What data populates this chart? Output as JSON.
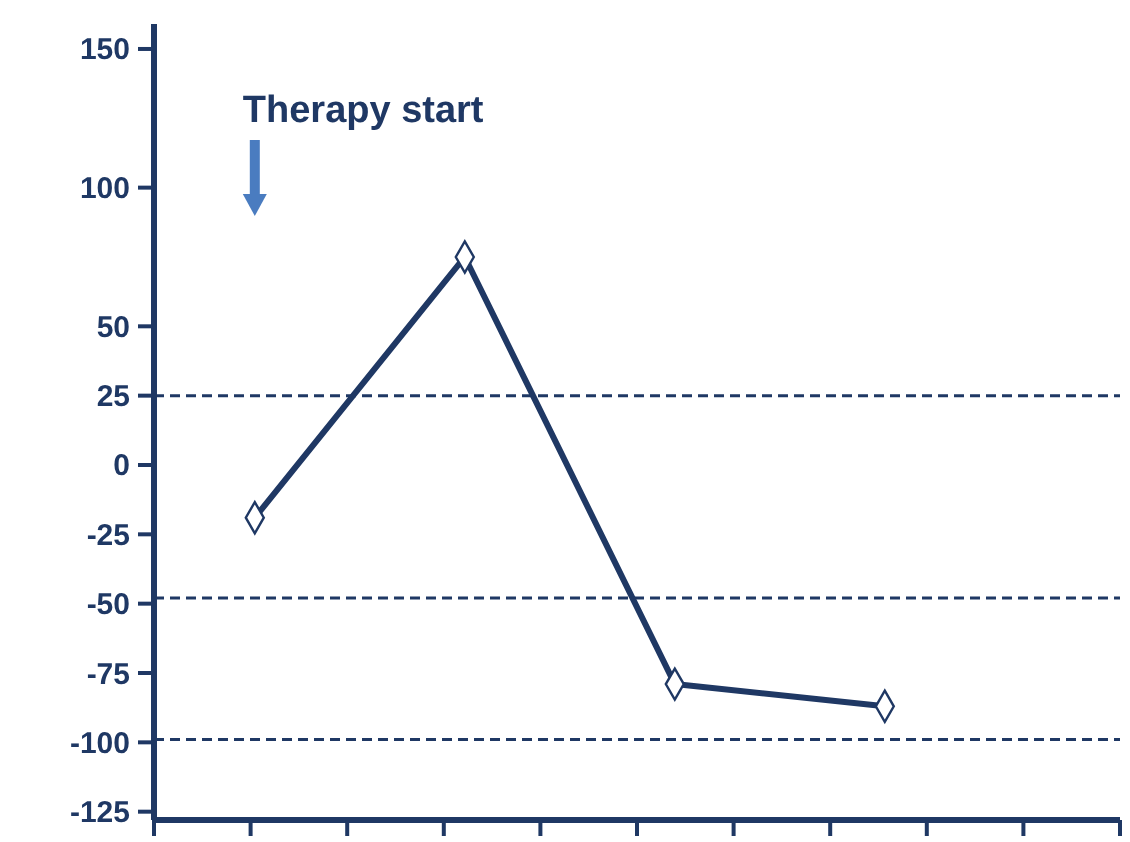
{
  "chart_data": {
    "type": "line",
    "categories": [
      null,
      null,
      null,
      null
    ],
    "values": [
      -19,
      75,
      -79,
      -87
    ],
    "color": "#1f3864",
    "marker": "diamond",
    "line_style": "solid",
    "ylim": [
      -128,
      159
    ],
    "yticks": [
      -125,
      -100,
      -75,
      -50,
      -25,
      0,
      25,
      50,
      100,
      150
    ],
    "tick_labels": "y",
    "grid": false,
    "legend": false,
    "ref_lines": [
      {
        "axis": "y",
        "value": 25,
        "line_style": "dashed",
        "color": "#1f3864"
      },
      {
        "axis": "y",
        "value": -48,
        "line_style": "dashed",
        "color": "#1f3864"
      },
      {
        "axis": "y",
        "value": -99,
        "line_style": "dashed",
        "color": "#1f3864"
      }
    ],
    "annotations": [
      "Therapy start"
    ]
  }
}
